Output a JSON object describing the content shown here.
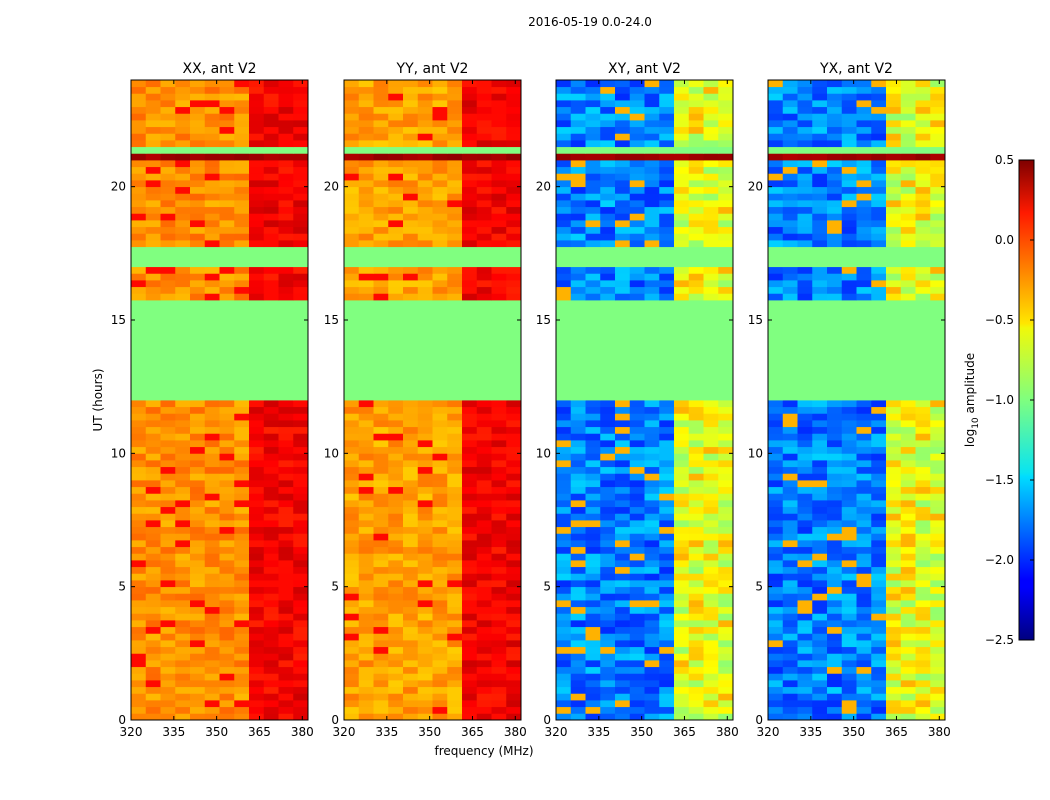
{
  "chart_data": {
    "type": "heatmap",
    "suptitle": "2016-05-19 0.0-24.0",
    "xlabel": "frequency (MHz)",
    "ylabel": "UT (hours)",
    "x_range": [
      320,
      382
    ],
    "y_range": [
      0,
      24
    ],
    "x_ticks": [
      "320",
      "335",
      "350",
      "365",
      "380"
    ],
    "x_tick_values": [
      320,
      335,
      350,
      365,
      380
    ],
    "y_ticks": [
      "0",
      "5",
      "10",
      "15",
      "20"
    ],
    "y_tick_values": [
      0,
      5,
      10,
      15,
      20
    ],
    "colorbar": {
      "label_main": "log",
      "label_sub": "10",
      "label_tail": " amplitude",
      "range": [
        -2.5,
        0.5
      ],
      "ticks": [
        "0.5",
        "0.0",
        "−0.5",
        "−1.0",
        "−1.5",
        "−2.0",
        "−2.5"
      ],
      "tick_values": [
        0.5,
        0.0,
        -0.5,
        -1.0,
        -1.5,
        -2.0,
        -2.5
      ],
      "colormap": "jet"
    },
    "panels": [
      {
        "title": "XX, ant V2",
        "polarization": "XX",
        "base_level": -0.3,
        "rfi_band_mhz": [
          363,
          381
        ],
        "rfi_level": 0.15
      },
      {
        "title": "YY, ant V2",
        "polarization": "YY",
        "base_level": -0.35,
        "rfi_band_mhz": [
          363,
          381
        ],
        "rfi_level": 0.15
      },
      {
        "title": "XY, ant V2",
        "polarization": "XY",
        "base_level": -1.75,
        "rfi_band_mhz": [
          363,
          381
        ],
        "rfi_level": -0.7
      },
      {
        "title": "YX, ant V2",
        "polarization": "YX",
        "base_level": -1.75,
        "rfi_band_mhz": [
          363,
          381
        ],
        "rfi_level": -0.7
      }
    ],
    "flagged_level": -1.0,
    "flagged_hours": [
      [
        11.8,
        15.6
      ],
      [
        16.9,
        17.6
      ],
      [
        21.1,
        21.5
      ]
    ],
    "strong_band_hours": [
      [
        20.8,
        21.1
      ]
    ]
  }
}
